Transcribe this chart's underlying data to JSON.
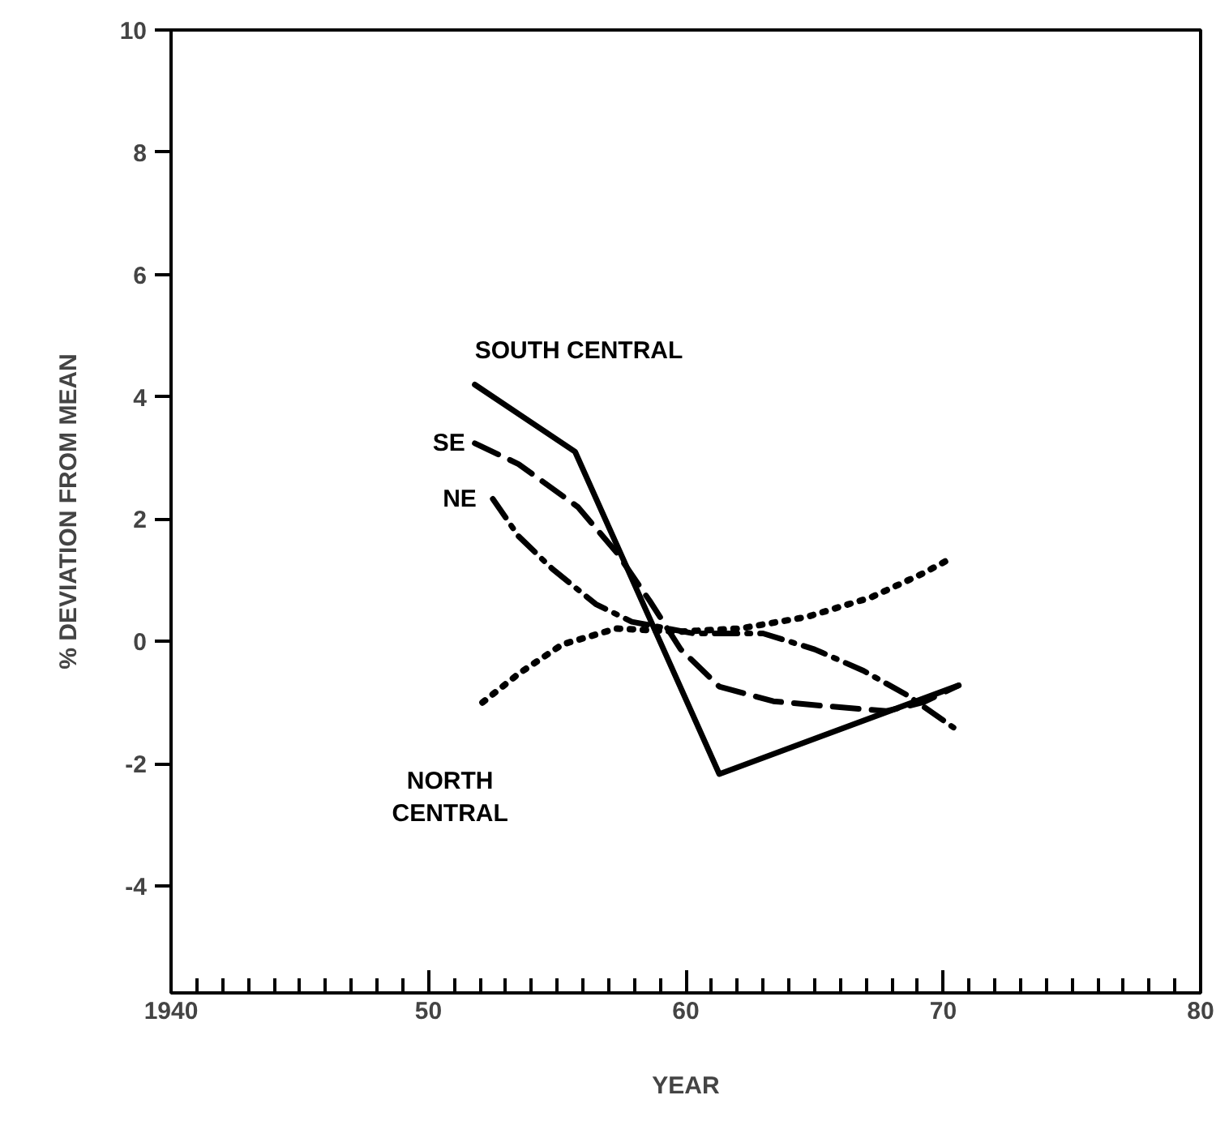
{
  "chart_data": {
    "type": "line",
    "xlabel": "YEAR",
    "ylabel": "% DEVIATION FROM MEAN",
    "xlim": [
      1940,
      1980
    ],
    "ylim": [
      -5.75,
      10
    ],
    "xticks": [
      {
        "value": 1940,
        "label": "1940"
      },
      {
        "value": 1950,
        "label": "50"
      },
      {
        "value": 1960,
        "label": "60"
      },
      {
        "value": 1970,
        "label": "70"
      },
      {
        "value": 1980,
        "label": "80"
      }
    ],
    "yticks": [
      -4,
      -2,
      0,
      2,
      4,
      6,
      8,
      10
    ],
    "grid": false,
    "legend": false,
    "marker": "none",
    "series": [
      {
        "name": "SOUTH CENTRAL",
        "color": "#000000",
        "line_style": "solid",
        "x": [
          1951.8,
          1955.7,
          1961.3,
          1970.6
        ],
        "values": [
          4.2,
          3.1,
          -2.17,
          -0.72
        ]
      },
      {
        "name": "SE",
        "color": "#000000",
        "line_style": "dashed",
        "x": [
          1951.8,
          1953.5,
          1955.8,
          1957.3,
          1958.6,
          1959.8,
          1961.3,
          1963.4,
          1965.5,
          1967.8,
          1969.2,
          1970.6
        ],
        "values": [
          3.24,
          2.9,
          2.2,
          1.46,
          0.66,
          -0.13,
          -0.74,
          -0.98,
          -1.06,
          -1.14,
          -1.0,
          -0.72
        ]
      },
      {
        "name": "NE",
        "color": "#000000",
        "line_style": "dashdot",
        "x": [
          1952.5,
          1953.5,
          1954.8,
          1956.5,
          1957.9,
          1960.3,
          1963,
          1965,
          1966.9,
          1968.6,
          1970.4
        ],
        "values": [
          2.33,
          1.72,
          1.19,
          0.61,
          0.32,
          0.13,
          0.13,
          -0.13,
          -0.48,
          -0.88,
          -1.41
        ]
      },
      {
        "name": "NORTH CENTRAL",
        "color": "#000000",
        "line_style": "dotted",
        "x": [
          1952.1,
          1953.5,
          1955.2,
          1957.3,
          1959.8,
          1962.1,
          1964.7,
          1967.2,
          1969.2,
          1970.4
        ],
        "values": [
          -1.0,
          -0.53,
          -0.05,
          0.21,
          0.16,
          0.21,
          0.4,
          0.72,
          1.11,
          1.38
        ]
      }
    ]
  }
}
